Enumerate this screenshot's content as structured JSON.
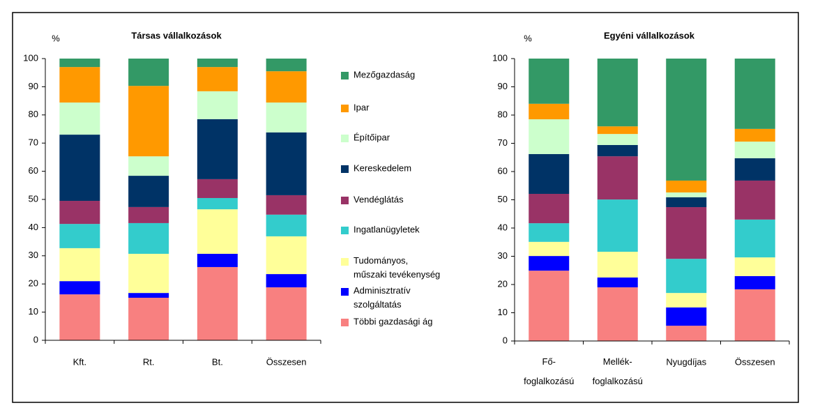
{
  "chart_data": [
    {
      "type": "stacked-bar",
      "title": "Társas vállalkozások",
      "y_label": "%",
      "categories": [
        "Kft.",
        "Rt.",
        "Bt.",
        "Összesen"
      ],
      "ylim": [
        0,
        100
      ],
      "yticks": [
        0,
        10,
        20,
        30,
        40,
        50,
        60,
        70,
        80,
        90,
        100
      ],
      "series": [
        {
          "name": "Többi gazdasági ág",
          "color": "#f88080",
          "values": [
            16.3,
            15.1,
            26.0,
            18.8
          ]
        },
        {
          "name": "Adminisztratív\nszolgáltatás",
          "color": "#0000ff",
          "values": [
            4.7,
            1.7,
            4.7,
            4.7
          ]
        },
        {
          "name": "Tudományos,\nműszaki tevékenység",
          "color": "#ffff99",
          "values": [
            11.7,
            13.9,
            15.8,
            13.4
          ]
        },
        {
          "name": "Ingatlanügyletek",
          "color": "#33cccc",
          "values": [
            8.6,
            10.9,
            4.0,
            7.7
          ]
        },
        {
          "name": "Vendéglátás",
          "color": "#993366",
          "values": [
            8.2,
            5.7,
            6.7,
            6.9
          ]
        },
        {
          "name": "Kereskedelem",
          "color": "#003366",
          "values": [
            23.5,
            11.1,
            21.3,
            22.3
          ]
        },
        {
          "name": "Építőipar",
          "color": "#ccffcc",
          "values": [
            11.4,
            6.9,
            9.9,
            10.6
          ]
        },
        {
          "name": "Ipar",
          "color": "#ff9900",
          "values": [
            12.6,
            25.0,
            8.6,
            11.1
          ]
        },
        {
          "name": "Mezőgazdaság",
          "color": "#339966",
          "values": [
            3.0,
            9.7,
            3.0,
            4.5
          ]
        }
      ]
    },
    {
      "type": "stacked-bar",
      "title": "Egyéni vállalkozások",
      "y_label": "%",
      "categories": [
        "Fő-\nfoglalkozású",
        "Mellék-\nfoglalkozású",
        "Nyugdíjas",
        "Összesen"
      ],
      "ylim": [
        0,
        100
      ],
      "yticks": [
        0,
        10,
        20,
        30,
        40,
        50,
        60,
        70,
        80,
        90,
        100
      ],
      "series": [
        {
          "values": [
            24.9,
            19.0,
            5.4,
            18.3
          ]
        },
        {
          "values": [
            5.2,
            3.5,
            6.5,
            4.7
          ]
        },
        {
          "values": [
            5.0,
            9.1,
            5.1,
            6.6
          ]
        },
        {
          "values": [
            6.6,
            18.5,
            12.1,
            13.4
          ]
        },
        {
          "values": [
            10.4,
            15.3,
            18.3,
            13.8
          ]
        },
        {
          "values": [
            14.1,
            4.0,
            3.5,
            7.9
          ]
        },
        {
          "values": [
            12.3,
            3.9,
            1.7,
            5.9
          ]
        },
        {
          "values": [
            5.5,
            2.7,
            4.2,
            4.5
          ]
        },
        {
          "values": [
            16.0,
            24.0,
            43.2,
            24.9
          ]
        }
      ]
    }
  ]
}
